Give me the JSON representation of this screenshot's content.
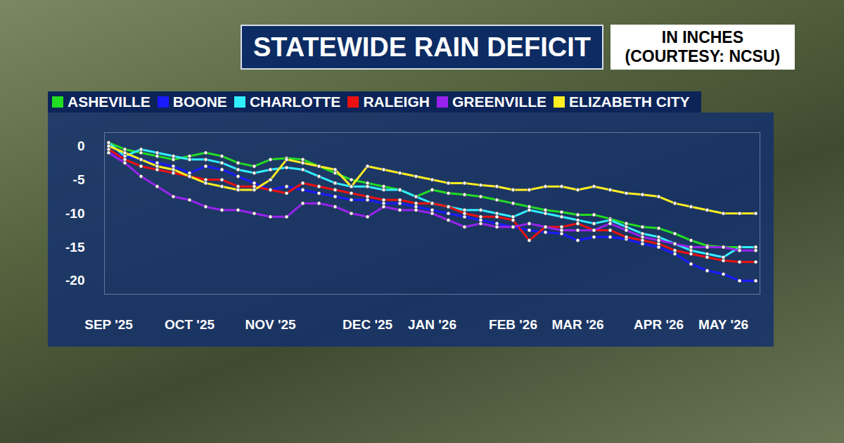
{
  "chart_data": {
    "type": "line",
    "title": "STATEWIDE RAIN DEFICIT",
    "subtitle": "IN INCHES (COURTESY: NCSU)",
    "categories": [
      "SEP '25",
      null,
      null,
      null,
      null,
      "OCT '25",
      null,
      null,
      null,
      null,
      "NOV '25",
      null,
      null,
      null,
      null,
      null,
      "DEC '25",
      null,
      null,
      null,
      "JAN '26",
      null,
      null,
      null,
      null,
      "FEB '26",
      null,
      null,
      null,
      "MAR '26",
      null,
      null,
      null,
      null,
      "APR '26",
      null,
      null,
      null,
      "MAY '26",
      null,
      null
    ],
    "series": [
      {
        "name": "ASHEVILLE",
        "color": "#22dd22",
        "values": [
          0.5,
          -0.5,
          -1,
          -1.5,
          -2,
          -1.5,
          -1,
          -1.5,
          -2.5,
          -3,
          -2,
          -1.8,
          -2,
          -3,
          -4,
          -5,
          -5.5,
          -6,
          -6.5,
          -7.5,
          -6.5,
          -7,
          -7.2,
          -7.5,
          -8,
          -8.5,
          -9,
          -9.5,
          -9.8,
          -10.2,
          -10.2,
          -10.8,
          -11.5,
          -12,
          -12.2,
          -13,
          -14,
          -14.8,
          -15,
          -15,
          -15
        ]
      },
      {
        "name": "BOONE",
        "color": "#1a1aff",
        "values": [
          -1,
          -1.5,
          -2,
          -2.5,
          -3,
          -4,
          -3,
          -3.5,
          -4.5,
          -5.5,
          -6.5,
          -6,
          -6.5,
          -7,
          -7.5,
          -8,
          -8,
          -8.5,
          -8.5,
          -9,
          -9.5,
          -10,
          -10.5,
          -11,
          -11.5,
          -12,
          -12.5,
          -12.8,
          -13,
          -14,
          -13.5,
          -13.5,
          -13.8,
          -14.5,
          -15,
          -16,
          -17.5,
          -18.5,
          -19,
          -20,
          -20
        ]
      },
      {
        "name": "CHARLOTTE",
        "color": "#33eeff",
        "values": [
          0.5,
          -1.5,
          -0.5,
          -1,
          -1.5,
          -2,
          -2,
          -2.5,
          -3.5,
          -4,
          -3.5,
          -3.2,
          -3.5,
          -4.5,
          -5.5,
          -6,
          -6,
          -6.5,
          -6.5,
          -7.5,
          -8.5,
          -9,
          -9.5,
          -9.5,
          -10,
          -10.5,
          -9.5,
          -10,
          -10.5,
          -11,
          -11.5,
          -11,
          -12,
          -13,
          -13.5,
          -14.5,
          -15.5,
          -16,
          -16.5,
          -15,
          -15
        ]
      },
      {
        "name": "RALEIGH",
        "color": "#ee1111",
        "values": [
          -0.5,
          -2,
          -3,
          -3.5,
          -4,
          -4.5,
          -5,
          -5,
          -6,
          -6,
          -6.5,
          -7,
          -5.5,
          -6,
          -6.5,
          -7,
          -7.5,
          -8,
          -8,
          -8.5,
          -8.5,
          -9,
          -10,
          -10.5,
          -10.5,
          -11,
          -14,
          -12,
          -12,
          -11.5,
          -12.5,
          -12.5,
          -13.5,
          -14,
          -14.5,
          -15.5,
          -16,
          -16.5,
          -17,
          -17.2,
          -17.2
        ]
      },
      {
        "name": "GREENVILLE",
        "color": "#9922ee",
        "values": [
          -1,
          -2.5,
          -4.5,
          -6,
          -7.5,
          -8,
          -9,
          -9.5,
          -9.5,
          -10,
          -10.5,
          -10.5,
          -8.5,
          -8.5,
          -9,
          -10,
          -10.5,
          -9,
          -9.5,
          -9.5,
          -10,
          -11,
          -12,
          -11.5,
          -12,
          -12,
          -11.5,
          -12,
          -12.5,
          -12.5,
          -12.5,
          -11.5,
          -12.5,
          -13.5,
          -14,
          -14.5,
          -15,
          -15,
          -15,
          -15.5,
          -15.5
        ]
      },
      {
        "name": "ELIZABETH CITY",
        "color": "#ffee22",
        "values": [
          0,
          -1,
          -2,
          -3,
          -3.5,
          -4.5,
          -5.5,
          -6,
          -6.5,
          -6.5,
          -5,
          -2,
          -2.5,
          -3,
          -3.5,
          -6,
          -3,
          -3.5,
          -4,
          -4.5,
          -5,
          -5.5,
          -5.5,
          -5.8,
          -6,
          -6.5,
          -6.5,
          -6,
          -6,
          -6.5,
          -6,
          -6.5,
          -7,
          -7.2,
          -7.5,
          -8.5,
          -9,
          -9.5,
          -10,
          -10,
          -10
        ]
      }
    ],
    "ylim": [
      -22,
      2
    ],
    "yticks": [
      0,
      -5,
      -10,
      -15,
      -20
    ],
    "grid": false,
    "legend": "top-left",
    "marker": "circle"
  }
}
